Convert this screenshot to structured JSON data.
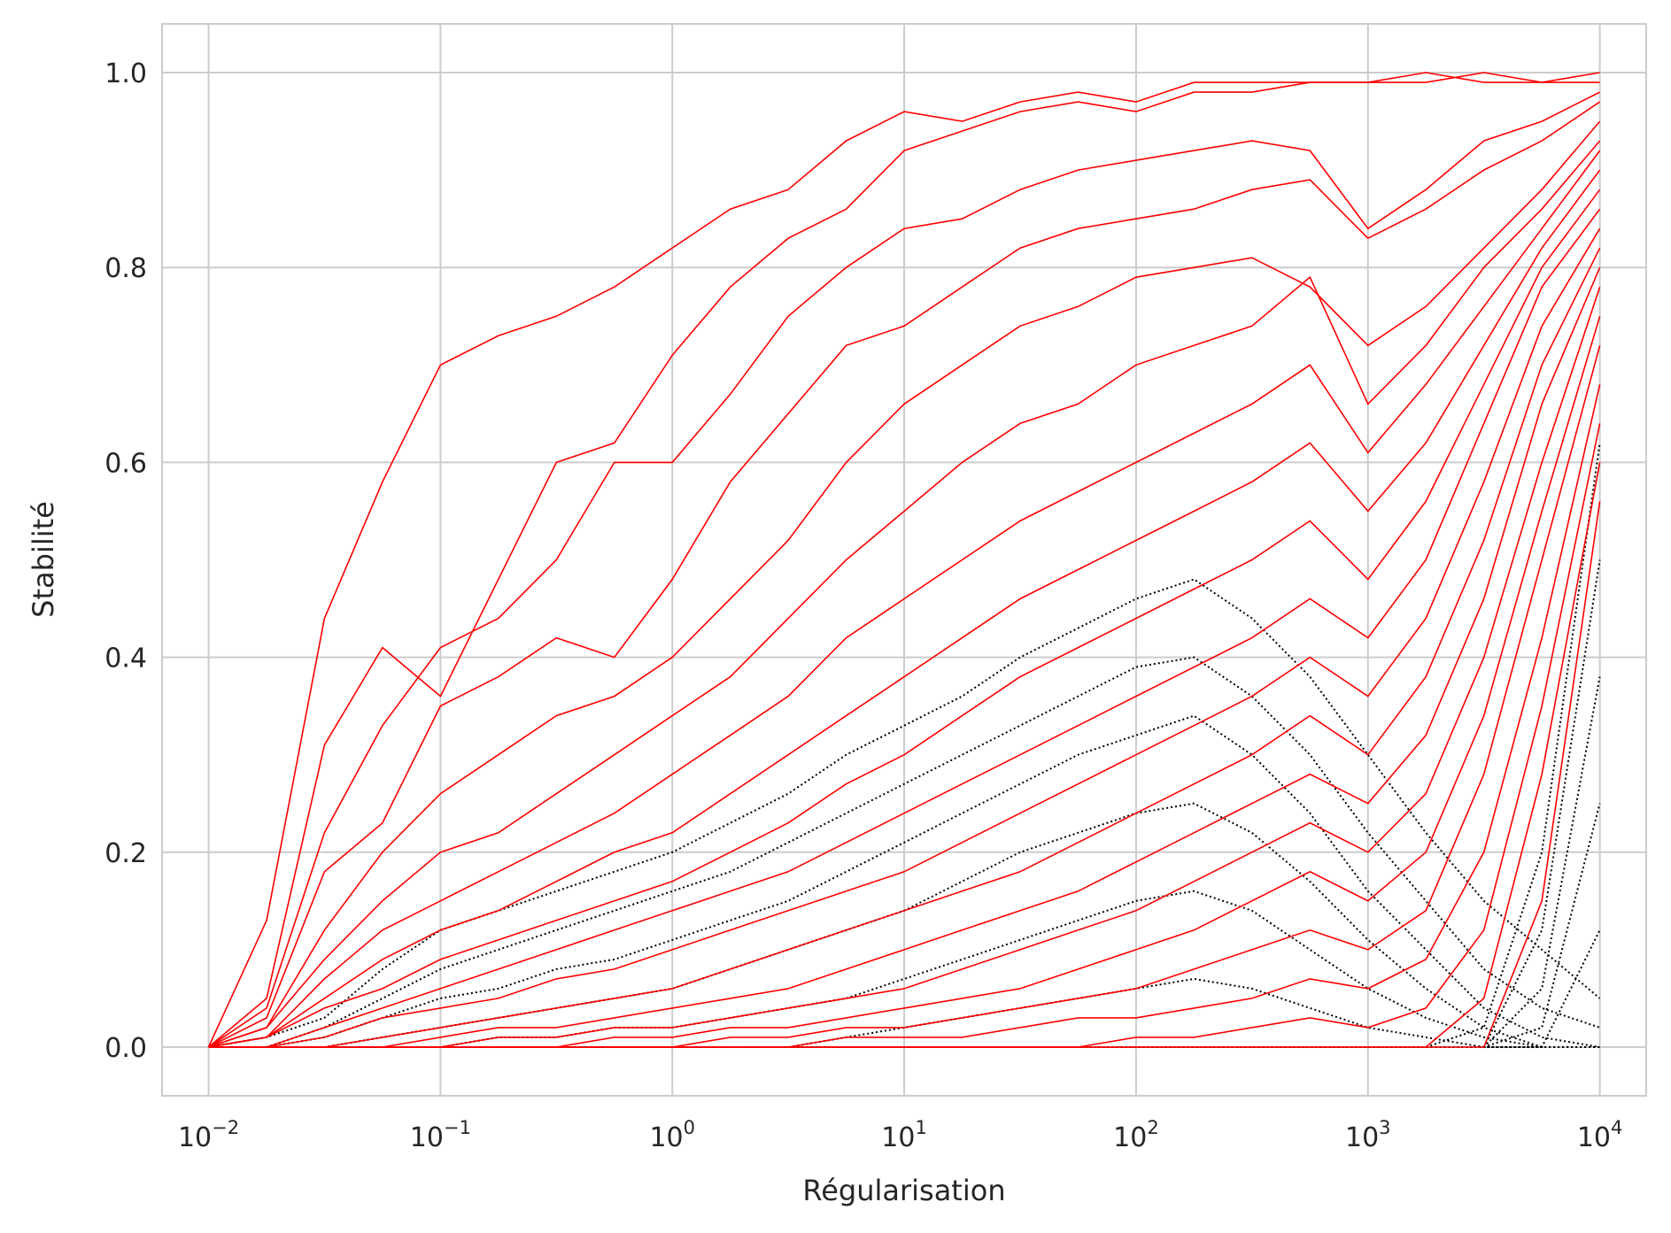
{
  "chart_data": {
    "type": "line",
    "xlabel": "Régularisation",
    "ylabel": "Stabilité",
    "xscale": "log",
    "xlim": [
      0.0063,
      15850
    ],
    "ylim": [
      -0.05,
      1.05
    ],
    "grid": true,
    "x_ticks": [
      {
        "value": 0.01,
        "base": "10",
        "exp": "−2"
      },
      {
        "value": 0.1,
        "base": "10",
        "exp": "−1"
      },
      {
        "value": 1,
        "base": "10",
        "exp": "0"
      },
      {
        "value": 10,
        "base": "10",
        "exp": "1"
      },
      {
        "value": 100,
        "base": "10",
        "exp": "2"
      },
      {
        "value": 1000,
        "base": "10",
        "exp": "3"
      },
      {
        "value": 10000,
        "base": "10",
        "exp": "4"
      }
    ],
    "y_ticks": [
      "0.0",
      "0.2",
      "0.4",
      "0.6",
      "0.8",
      "1.0"
    ],
    "colors": {
      "selected": "#ff0000",
      "unselected": "#000000"
    },
    "x": [
      0.01,
      0.0178,
      0.0316,
      0.0562,
      0.1,
      0.1778,
      0.3162,
      0.5623,
      1,
      1.778,
      3.162,
      5.623,
      10,
      17.78,
      31.62,
      56.23,
      100,
      177.8,
      316.2,
      562.3,
      1000,
      1778,
      3162,
      5623,
      10000
    ],
    "series_groups": [
      {
        "name": "selected",
        "color": "#ff0000",
        "style": "solid",
        "series": [
          {
            "values": [
              0,
              0.13,
              0.44,
              0.58,
              0.7,
              0.73,
              0.75,
              0.78,
              0.82,
              0.86,
              0.88,
              0.93,
              0.96,
              0.95,
              0.97,
              0.98,
              0.97,
              0.99,
              0.99,
              0.99,
              0.99,
              1.0,
              0.99,
              0.99,
              0.99
            ]
          },
          {
            "values": [
              0,
              0.05,
              0.31,
              0.41,
              0.36,
              0.48,
              0.6,
              0.62,
              0.71,
              0.78,
              0.83,
              0.86,
              0.92,
              0.94,
              0.96,
              0.97,
              0.96,
              0.98,
              0.98,
              0.99,
              0.99,
              0.99,
              1.0,
              0.99,
              1.0
            ]
          },
          {
            "values": [
              0,
              0.04,
              0.22,
              0.33,
              0.41,
              0.44,
              0.5,
              0.6,
              0.6,
              0.67,
              0.75,
              0.8,
              0.84,
              0.85,
              0.88,
              0.9,
              0.91,
              0.92,
              0.93,
              0.92,
              0.84,
              0.88,
              0.93,
              0.95,
              0.98
            ]
          },
          {
            "values": [
              0,
              0.03,
              0.18,
              0.23,
              0.35,
              0.38,
              0.42,
              0.4,
              0.48,
              0.58,
              0.65,
              0.72,
              0.74,
              0.78,
              0.82,
              0.84,
              0.85,
              0.86,
              0.88,
              0.89,
              0.83,
              0.86,
              0.9,
              0.93,
              0.97
            ]
          },
          {
            "values": [
              0,
              0.02,
              0.12,
              0.2,
              0.26,
              0.3,
              0.34,
              0.36,
              0.4,
              0.46,
              0.52,
              0.6,
              0.66,
              0.7,
              0.74,
              0.76,
              0.79,
              0.8,
              0.81,
              0.78,
              0.72,
              0.76,
              0.82,
              0.88,
              0.95
            ]
          },
          {
            "values": [
              0,
              0.02,
              0.09,
              0.15,
              0.2,
              0.22,
              0.26,
              0.3,
              0.34,
              0.38,
              0.44,
              0.5,
              0.55,
              0.6,
              0.64,
              0.66,
              0.7,
              0.72,
              0.74,
              0.79,
              0.66,
              0.72,
              0.8,
              0.86,
              0.93
            ]
          },
          {
            "values": [
              0,
              0.01,
              0.07,
              0.12,
              0.15,
              0.18,
              0.21,
              0.24,
              0.28,
              0.32,
              0.36,
              0.42,
              0.46,
              0.5,
              0.54,
              0.57,
              0.6,
              0.63,
              0.66,
              0.7,
              0.61,
              0.68,
              0.76,
              0.84,
              0.92
            ]
          },
          {
            "values": [
              0,
              0.01,
              0.05,
              0.09,
              0.12,
              0.14,
              0.17,
              0.2,
              0.22,
              0.26,
              0.3,
              0.34,
              0.38,
              0.42,
              0.46,
              0.49,
              0.52,
              0.55,
              0.58,
              0.62,
              0.55,
              0.62,
              0.72,
              0.82,
              0.9
            ]
          },
          {
            "values": [
              0,
              0.01,
              0.04,
              0.06,
              0.09,
              0.11,
              0.13,
              0.15,
              0.17,
              0.2,
              0.23,
              0.27,
              0.3,
              0.34,
              0.38,
              0.41,
              0.44,
              0.47,
              0.5,
              0.54,
              0.48,
              0.56,
              0.68,
              0.8,
              0.88
            ]
          },
          {
            "values": [
              0,
              0,
              0.02,
              0.04,
              0.06,
              0.08,
              0.1,
              0.12,
              0.14,
              0.16,
              0.18,
              0.21,
              0.24,
              0.27,
              0.3,
              0.33,
              0.36,
              0.39,
              0.42,
              0.46,
              0.42,
              0.5,
              0.64,
              0.78,
              0.86
            ]
          },
          {
            "values": [
              0,
              0,
              0.01,
              0.03,
              0.04,
              0.05,
              0.07,
              0.08,
              0.1,
              0.12,
              0.14,
              0.16,
              0.18,
              0.21,
              0.24,
              0.27,
              0.3,
              0.33,
              0.36,
              0.4,
              0.36,
              0.44,
              0.58,
              0.74,
              0.84
            ]
          },
          {
            "values": [
              0,
              0,
              0,
              0.01,
              0.02,
              0.03,
              0.04,
              0.05,
              0.06,
              0.08,
              0.1,
              0.12,
              0.14,
              0.16,
              0.18,
              0.21,
              0.24,
              0.27,
              0.3,
              0.34,
              0.3,
              0.38,
              0.52,
              0.7,
              0.82
            ]
          },
          {
            "values": [
              0,
              0,
              0,
              0,
              0.01,
              0.02,
              0.02,
              0.03,
              0.04,
              0.05,
              0.06,
              0.08,
              0.1,
              0.12,
              0.14,
              0.16,
              0.19,
              0.22,
              0.25,
              0.28,
              0.25,
              0.32,
              0.46,
              0.66,
              0.8
            ]
          },
          {
            "values": [
              0,
              0,
              0,
              0,
              0,
              0.01,
              0.01,
              0.02,
              0.02,
              0.03,
              0.04,
              0.05,
              0.06,
              0.08,
              0.1,
              0.12,
              0.14,
              0.17,
              0.2,
              0.23,
              0.2,
              0.26,
              0.4,
              0.6,
              0.78
            ]
          },
          {
            "values": [
              0,
              0,
              0,
              0,
              0,
              0,
              0,
              0.01,
              0.01,
              0.02,
              0.02,
              0.03,
              0.04,
              0.05,
              0.06,
              0.08,
              0.1,
              0.12,
              0.15,
              0.18,
              0.15,
              0.2,
              0.34,
              0.55,
              0.75
            ]
          },
          {
            "values": [
              0,
              0,
              0,
              0,
              0,
              0,
              0,
              0,
              0,
              0.01,
              0.01,
              0.02,
              0.02,
              0.03,
              0.04,
              0.05,
              0.06,
              0.08,
              0.1,
              0.12,
              0.1,
              0.14,
              0.28,
              0.5,
              0.72
            ]
          },
          {
            "values": [
              0,
              0,
              0,
              0,
              0,
              0,
              0,
              0,
              0,
              0,
              0,
              0.01,
              0.01,
              0.01,
              0.02,
              0.03,
              0.03,
              0.04,
              0.05,
              0.07,
              0.06,
              0.09,
              0.2,
              0.42,
              0.68
            ]
          },
          {
            "values": [
              0,
              0,
              0,
              0,
              0,
              0,
              0,
              0,
              0,
              0,
              0,
              0,
              0,
              0,
              0,
              0,
              0.01,
              0.01,
              0.02,
              0.03,
              0.02,
              0.04,
              0.12,
              0.35,
              0.64
            ]
          },
          {
            "values": [
              0,
              0,
              0,
              0,
              0,
              0,
              0,
              0,
              0,
              0,
              0,
              0,
              0,
              0,
              0,
              0,
              0,
              0,
              0,
              0,
              0,
              0,
              0.05,
              0.28,
              0.6
            ]
          },
          {
            "values": [
              0,
              0,
              0,
              0,
              0,
              0,
              0,
              0,
              0,
              0,
              0,
              0,
              0,
              0,
              0,
              0,
              0,
              0,
              0,
              0,
              0,
              0,
              0,
              0.15,
              0.56
            ]
          }
        ]
      },
      {
        "name": "unselected",
        "color": "#000000",
        "style": "dotted",
        "series": [
          {
            "values": [
              0,
              0.01,
              0.03,
              0.08,
              0.12,
              0.14,
              0.16,
              0.18,
              0.2,
              0.23,
              0.26,
              0.3,
              0.33,
              0.36,
              0.4,
              0.43,
              0.46,
              0.48,
              0.44,
              0.38,
              0.3,
              0.22,
              0.15,
              0.1,
              0.05
            ]
          },
          {
            "values": [
              0,
              0,
              0.02,
              0.05,
              0.08,
              0.1,
              0.12,
              0.14,
              0.16,
              0.18,
              0.21,
              0.24,
              0.27,
              0.3,
              0.33,
              0.36,
              0.39,
              0.4,
              0.36,
              0.3,
              0.22,
              0.15,
              0.08,
              0.04,
              0.02
            ]
          },
          {
            "values": [
              0,
              0,
              0.01,
              0.03,
              0.05,
              0.06,
              0.08,
              0.09,
              0.11,
              0.13,
              0.15,
              0.18,
              0.21,
              0.24,
              0.27,
              0.3,
              0.32,
              0.34,
              0.3,
              0.24,
              0.16,
              0.1,
              0.04,
              0.01,
              0
            ]
          },
          {
            "values": [
              0,
              0,
              0,
              0.01,
              0.02,
              0.03,
              0.04,
              0.05,
              0.06,
              0.08,
              0.1,
              0.12,
              0.14,
              0.17,
              0.2,
              0.22,
              0.24,
              0.25,
              0.22,
              0.17,
              0.11,
              0.06,
              0.02,
              0,
              0
            ]
          },
          {
            "values": [
              0,
              0,
              0,
              0,
              0,
              0.01,
              0.01,
              0.02,
              0.02,
              0.03,
              0.04,
              0.05,
              0.07,
              0.09,
              0.11,
              0.13,
              0.15,
              0.16,
              0.14,
              0.1,
              0.06,
              0.03,
              0.01,
              0,
              0
            ]
          },
          {
            "values": [
              0,
              0,
              0,
              0,
              0,
              0,
              0,
              0,
              0,
              0,
              0,
              0.01,
              0.02,
              0.03,
              0.04,
              0.05,
              0.06,
              0.07,
              0.06,
              0.04,
              0.02,
              0.01,
              0,
              0,
              0
            ]
          },
          {
            "values": [
              0,
              0,
              0,
              0,
              0,
              0,
              0,
              0,
              0,
              0,
              0,
              0,
              0,
              0,
              0,
              0,
              0,
              0,
              0,
              0,
              0,
              0,
              0.02,
              0.2,
              0.62
            ]
          },
          {
            "values": [
              0,
              0,
              0,
              0,
              0,
              0,
              0,
              0,
              0,
              0,
              0,
              0,
              0,
              0,
              0,
              0,
              0,
              0,
              0,
              0,
              0,
              0,
              0,
              0.12,
              0.5
            ]
          },
          {
            "values": [
              0,
              0,
              0,
              0,
              0,
              0,
              0,
              0,
              0,
              0,
              0,
              0,
              0,
              0,
              0,
              0,
              0,
              0,
              0,
              0,
              0,
              0,
              0,
              0.06,
              0.38
            ]
          },
          {
            "values": [
              0,
              0,
              0,
              0,
              0,
              0,
              0,
              0,
              0,
              0,
              0,
              0,
              0,
              0,
              0,
              0,
              0,
              0,
              0,
              0,
              0,
              0,
              0,
              0.02,
              0.25
            ]
          },
          {
            "values": [
              0,
              0,
              0,
              0,
              0,
              0,
              0,
              0,
              0,
              0,
              0,
              0,
              0,
              0,
              0,
              0,
              0,
              0,
              0,
              0,
              0,
              0,
              0,
              0,
              0.12
            ]
          }
        ]
      }
    ]
  }
}
